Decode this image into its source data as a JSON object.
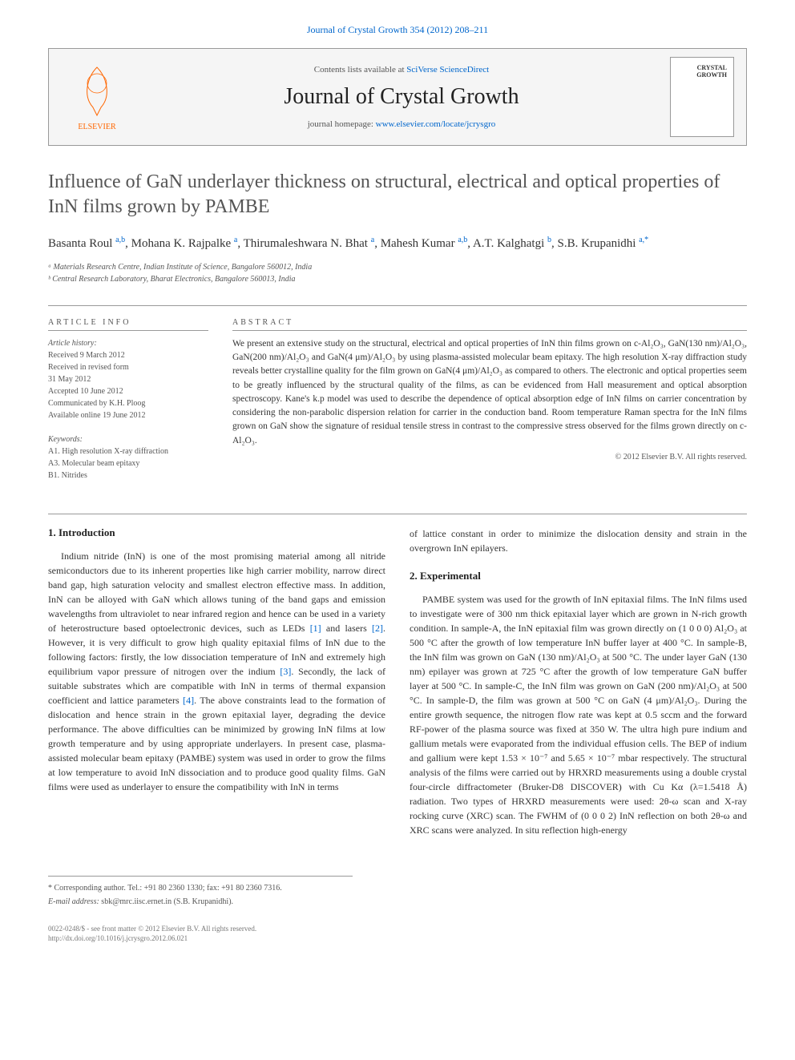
{
  "header": {
    "citation": "Journal of Crystal Growth 354 (2012) 208–211",
    "contents_prefix": "Contents lists available at ",
    "contents_link": "SciVerse ScienceDirect",
    "journal_title": "Journal of Crystal Growth",
    "homepage_prefix": "journal homepage: ",
    "homepage_link": "www.elsevier.com/locate/jcrysgro",
    "publisher": "ELSEVIER",
    "cover_text": "CRYSTAL GROWTH"
  },
  "article": {
    "title": "Influence of GaN underlayer thickness on structural, electrical and optical properties of InN films grown by PAMBE",
    "authors_html": "Basanta Roul <sup>a,b</sup>, Mohana K. Rajpalke <sup>a</sup>, Thirumaleshwara N. Bhat <sup>a</sup>, Mahesh Kumar <sup>a,b</sup>, A.T. Kalghatgi <sup>b</sup>, S.B. Krupanidhi <sup>a,*</sup>",
    "affiliations": [
      "ᵃ Materials Research Centre, Indian Institute of Science, Bangalore 560012, India",
      "ᵇ Central Research Laboratory, Bharat Electronics, Bangalore 560013, India"
    ]
  },
  "info": {
    "heading": "ARTICLE INFO",
    "history_label": "Article history:",
    "history": [
      "Received 9 March 2012",
      "Received in revised form",
      "31 May 2012",
      "Accepted 10 June 2012",
      "Communicated by K.H. Ploog",
      "Available online 19 June 2012"
    ],
    "keywords_label": "Keywords:",
    "keywords": [
      "A1. High resolution X-ray diffraction",
      "A3. Molecular beam epitaxy",
      "B1. Nitrides"
    ]
  },
  "abstract": {
    "heading": "ABSTRACT",
    "text": "We present an extensive study on the structural, electrical and optical properties of InN thin films grown on c-Al₂O₃, GaN(130 nm)/Al₂O₃, GaN(200 nm)/Al₂O₃ and GaN(4 μm)/Al₂O₃ by using plasma-assisted molecular beam epitaxy. The high resolution X-ray diffraction study reveals better crystalline quality for the film grown on GaN(4 μm)/Al₂O₃ as compared to others. The electronic and optical properties seem to be greatly influenced by the structural quality of the films, as can be evidenced from Hall measurement and optical absorption spectroscopy. Kane's k.p model was used to describe the dependence of optical absorption edge of InN films on carrier concentration by considering the non-parabolic dispersion relation for carrier in the conduction band. Room temperature Raman spectra for the InN films grown on GaN show the signature of residual tensile stress in contrast to the compressive stress observed for the films grown directly on c-Al₂O₃.",
    "copyright": "© 2012 Elsevier B.V. All rights reserved."
  },
  "sections": {
    "intro_heading": "1. Introduction",
    "intro_text": "Indium nitride (InN) is one of the most promising material among all nitride semiconductors due to its inherent properties like high carrier mobility, narrow direct band gap, high saturation velocity and smallest electron effective mass. In addition, InN can be alloyed with GaN which allows tuning of the band gaps and emission wavelengths from ultraviolet to near infrared region and hence can be used in a variety of heterostructure based optoelectronic devices, such as LEDs [1] and lasers [2]. However, it is very difficult to grow high quality epitaxial films of InN due to the following factors: firstly, the low dissociation temperature of InN and extremely high equilibrium vapor pressure of nitrogen over the indium [3]. Secondly, the lack of suitable substrates which are compatible with InN in terms of thermal expansion coefficient and lattice parameters [4]. The above constraints lead to the formation of dislocation and hence strain in the grown epitaxial layer, degrading the device performance. The above difficulties can be minimized by growing InN films at low growth temperature and by using appropriate underlayers. In present case, plasma-assisted molecular beam epitaxy (PAMBE) system was used in order to grow the films at low temperature to avoid InN dissociation and to produce good quality films. GaN films were used as underlayer to ensure the compatibility with InN in terms",
    "col2_intro_tail": "of lattice constant in order to minimize the dislocation density and strain in the overgrown InN epilayers.",
    "exp_heading": "2. Experimental",
    "exp_text": "PAMBE system was used for the growth of InN epitaxial films. The InN films used to investigate were of 300 nm thick epitaxial layer which are grown in N-rich growth condition. In sample-A, the InN epitaxial film was grown directly on (1 0 0 0) Al₂O₃ at 500 °C after the growth of low temperature InN buffer layer at 400 °C. In sample-B, the InN film was grown on GaN (130 nm)/Al₂O₃ at 500 °C. The under layer GaN (130 nm) epilayer was grown at 725 °C after the growth of low temperature GaN buffer layer at 500 °C. In sample-C, the InN film was grown on GaN (200 nm)/Al₂O₃ at 500 °C. In sample-D, the film was grown at 500 °C on GaN (4 μm)/Al₂O₃. During the entire growth sequence, the nitrogen flow rate was kept at 0.5 sccm and the forward RF-power of the plasma source was fixed at 350 W. The ultra high pure indium and gallium metals were evaporated from the individual effusion cells. The BEP of indium and gallium were kept 1.53 × 10⁻⁷ and 5.65 × 10⁻⁷ mbar respectively. The structural analysis of the films were carried out by HRXRD measurements using a double crystal four-circle diffractometer (Bruker-D8 DISCOVER) with Cu Kα (λ=1.5418 Å) radiation. Two types of HRXRD measurements were used: 2θ-ω scan and X-ray rocking curve (XRC) scan. The FWHM of (0 0 0 2) InN reflection on both 2θ-ω and XRC scans were analyzed. In situ reflection high-energy"
  },
  "footnote": {
    "corresponding": "* Corresponding author. Tel.: +91 80 2360 1330; fax: +91 80 2360 7316.",
    "email_label": "E-mail address:",
    "email": "sbk@mrc.iisc.ernet.in (S.B. Krupanidhi)."
  },
  "pub": {
    "line1": "0022-0248/$ - see front matter © 2012 Elsevier B.V. All rights reserved.",
    "line2": "http://dx.doi.org/10.1016/j.jcrysgro.2012.06.021"
  },
  "colors": {
    "link": "#0066cc",
    "text": "#333333",
    "muted": "#555555",
    "orange": "#ff6600",
    "border": "#999999"
  }
}
